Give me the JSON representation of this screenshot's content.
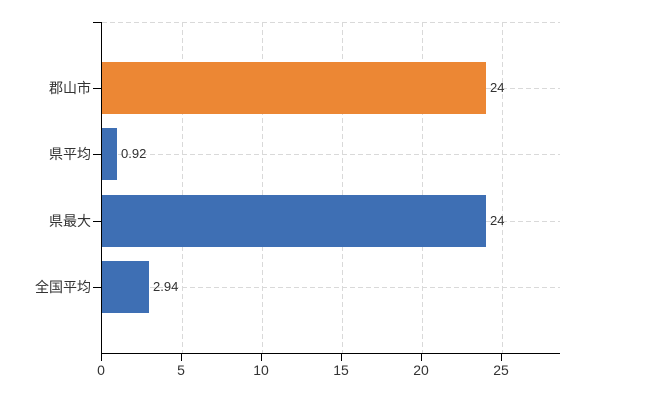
{
  "chart_data": {
    "type": "bar",
    "orientation": "horizontal",
    "title": "",
    "categories": [
      "郡山市",
      "県平均",
      "県最大",
      "全国平均"
    ],
    "values": [
      24,
      0.92,
      24,
      2.94
    ],
    "value_labels": [
      "24",
      "0.92",
      "24",
      "2.94"
    ],
    "bar_colors": [
      "#EC8734",
      "#3E6FB4",
      "#3E6FB4",
      "#3E6FB4"
    ],
    "x_ticks": [
      "0",
      "5",
      "10",
      "15",
      "20",
      "25"
    ],
    "x_tick_values": [
      0,
      5,
      10,
      15,
      20,
      25
    ],
    "xlim": [
      0,
      28.6
    ],
    "grid": true,
    "legend": false,
    "xlabel": "",
    "ylabel": "",
    "colors": {
      "gridline": "#D9D9D9",
      "axis": "#000000",
      "text": "#333333",
      "background": "#FFFFFF",
      "accent_orange": "#EC8734",
      "accent_blue": "#3E6FB4"
    }
  }
}
